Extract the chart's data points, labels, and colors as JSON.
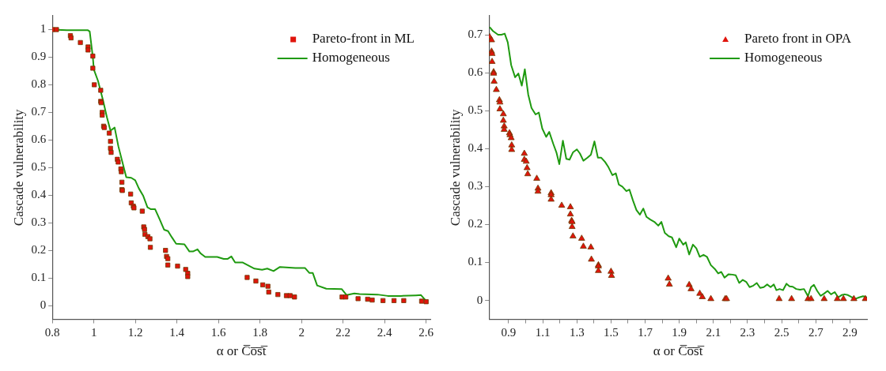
{
  "chart_data": [
    {
      "type": "scatter",
      "xlabel": "α or C̅o̅s̅t̅",
      "ylabel": "Cascade vulnerability",
      "xlim": [
        0.8,
        2.62
      ],
      "ylim": [
        -0.05,
        1.05
      ],
      "xticks": [
        0.8,
        1,
        1.2,
        1.4,
        1.6,
        1.8,
        2,
        2.2,
        2.4,
        2.6
      ],
      "yticks": [
        0,
        0.1,
        0.2,
        0.3,
        0.4,
        0.5,
        0.6,
        0.7,
        0.8,
        0.9,
        1
      ],
      "grid": false,
      "legend": "top right",
      "series": [
        {
          "name": "Pareto-front in ML",
          "type": "scatter",
          "marker": "square",
          "color": "#e0140c",
          "x": [
            0.8,
            0.82,
            0.887,
            0.89,
            0.935,
            0.972,
            0.972,
            0.995,
            0.995,
            1.002,
            1.033,
            1.033,
            1.035,
            1.04,
            1.04,
            1.047,
            1.05,
            1.074,
            1.08,
            1.08,
            1.083,
            1.113,
            1.117,
            1.13,
            1.132,
            1.135,
            1.135,
            1.137,
            1.177,
            1.18,
            1.19,
            1.193,
            1.233,
            1.24,
            1.244,
            1.246,
            1.26,
            1.27,
            1.272,
            1.345,
            1.35,
            1.356,
            1.356,
            1.403,
            1.442,
            1.452,
            1.452,
            1.738,
            1.78,
            1.813,
            1.838,
            1.842,
            1.886,
            1.927,
            1.945,
            1.966,
            2.195,
            2.213,
            2.272,
            2.318,
            2.34,
            2.392,
            2.445,
            2.492,
            2.578,
            2.6
          ],
          "values": [
            1,
            1,
            0.978,
            0.97,
            0.953,
            0.937,
            0.926,
            0.904,
            0.86,
            0.8,
            0.78,
            0.74,
            0.735,
            0.7,
            0.69,
            0.65,
            0.645,
            0.625,
            0.595,
            0.57,
            0.555,
            0.53,
            0.52,
            0.495,
            0.485,
            0.447,
            0.42,
            0.417,
            0.404,
            0.372,
            0.36,
            0.354,
            0.342,
            0.285,
            0.276,
            0.258,
            0.25,
            0.242,
            0.211,
            0.2,
            0.178,
            0.17,
            0.147,
            0.143,
            0.131,
            0.117,
            0.105,
            0.102,
            0.089,
            0.075,
            0.07,
            0.049,
            0.04,
            0.036,
            0.036,
            0.031,
            0.031,
            0.031,
            0.025,
            0.023,
            0.02,
            0.018,
            0.018,
            0.018,
            0.016,
            0.014
          ]
        },
        {
          "name": "Homogeneous",
          "type": "line",
          "marker": "none",
          "line_style": "solid",
          "color": "#1f9a10",
          "x": [
            0.8,
            0.87,
            0.97,
            0.98,
            0.995,
            1.0,
            1.02,
            1.044,
            1.063,
            1.08,
            1.1,
            1.118,
            1.156,
            1.18,
            1.199,
            1.217,
            1.238,
            1.258,
            1.275,
            1.295,
            1.316,
            1.338,
            1.357,
            1.375,
            1.396,
            1.436,
            1.46,
            1.477,
            1.499,
            1.514,
            1.536,
            1.594,
            1.625,
            1.643,
            1.662,
            1.68,
            1.717,
            1.773,
            1.81,
            1.835,
            1.865,
            1.896,
            1.97,
            2.017,
            2.038,
            2.054,
            2.075,
            2.119,
            2.193,
            2.217,
            2.254,
            2.279,
            2.365,
            2.415,
            2.477,
            2.551,
            2.575,
            2.596
          ],
          "values": [
            1,
            0.998,
            0.998,
            0.993,
            0.9,
            0.855,
            0.814,
            0.744,
            0.682,
            0.634,
            0.645,
            0.577,
            0.465,
            0.463,
            0.454,
            0.424,
            0.397,
            0.356,
            0.349,
            0.349,
            0.314,
            0.275,
            0.27,
            0.248,
            0.224,
            0.222,
            0.196,
            0.196,
            0.204,
            0.189,
            0.176,
            0.176,
            0.169,
            0.169,
            0.178,
            0.156,
            0.156,
            0.134,
            0.13,
            0.134,
            0.125,
            0.14,
            0.136,
            0.136,
            0.118,
            0.118,
            0.073,
            0.061,
            0.06,
            0.038,
            0.044,
            0.042,
            0.04,
            0.035,
            0.035,
            0.037,
            0.038,
            0.02
          ]
        }
      ]
    },
    {
      "type": "scatter",
      "xlabel": "α or C̅o̅s̅t̅",
      "ylabel": "Cascade vulnerability",
      "xlim": [
        0.785,
        3.0
      ],
      "ylim": [
        -0.05,
        0.75
      ],
      "xticks": [
        0.9,
        {
          "value": 1.0,
          "label": null
        },
        1.1,
        {
          "value": 1.2,
          "label": null
        },
        1.3,
        {
          "value": 1.4,
          "label": null
        },
        1.5,
        {
          "value": 1.6,
          "label": null
        },
        1.7,
        {
          "value": 1.8,
          "label": null
        },
        1.9,
        {
          "value": 2.0,
          "label": null
        },
        2.1,
        {
          "value": 2.2,
          "label": null
        },
        2.3,
        {
          "value": 2.4,
          "label": null
        },
        2.5,
        {
          "value": 2.6,
          "label": null
        },
        2.7,
        {
          "value": 2.8,
          "label": null
        },
        2.9
      ],
      "yticks": [
        0,
        0.1,
        0.2,
        0.3,
        0.4,
        0.5,
        0.6,
        0.7
      ],
      "grid": false,
      "legend": "top right",
      "series": [
        {
          "name": "Pareto front in OPA",
          "type": "scatter",
          "marker": "triangle",
          "color": "#e0140c",
          "x": [
            0.789,
            0.8,
            0.8,
            0.803,
            0.803,
            0.812,
            0.812,
            0.815,
            0.828,
            0.846,
            0.849,
            0.849,
            0.869,
            0.869,
            0.874,
            0.874,
            0.905,
            0.908,
            0.915,
            0.918,
            0.918,
            0.992,
            0.992,
            1.003,
            1.008,
            1.012,
            1.065,
            1.072,
            1.072,
            1.149,
            1.149,
            1.149,
            1.211,
            1.262,
            1.262,
            1.269,
            1.272,
            1.272,
            1.277,
            1.328,
            1.338,
            1.382,
            1.385,
            1.426,
            1.426,
            1.426,
            1.5,
            1.503,
            1.835,
            1.842,
            1.958,
            1.969,
            2.02,
            2.035,
            2.085,
            2.169,
            2.177,
            2.485,
            2.558,
            2.654,
            2.672,
            2.749,
            2.826,
            2.862,
            2.923,
            2.99
          ],
          "values": [
            0.694,
            0.686,
            0.656,
            0.65,
            0.629,
            0.602,
            0.598,
            0.577,
            0.555,
            0.528,
            0.522,
            0.504,
            0.491,
            0.474,
            0.459,
            0.45,
            0.441,
            0.436,
            0.428,
            0.409,
            0.397,
            0.387,
            0.371,
            0.366,
            0.349,
            0.333,
            0.321,
            0.295,
            0.287,
            0.283,
            0.278,
            0.266,
            0.25,
            0.246,
            0.227,
            0.21,
            0.207,
            0.194,
            0.169,
            0.163,
            0.142,
            0.14,
            0.108,
            0.093,
            0.09,
            0.078,
            0.076,
            0.065,
            0.058,
            0.042,
            0.041,
            0.03,
            0.018,
            0.009,
            0.004,
            0.004,
            0.004,
            0.004,
            0.004,
            0.004,
            0.004,
            0.004,
            0.004,
            0.004,
            0.004,
            0.004
          ]
        },
        {
          "name": "Homogeneous",
          "type": "line",
          "marker": "none",
          "line_style": "solid",
          "color": "#1f9a10",
          "x": [
            0.789,
            0.808,
            0.838,
            0.858,
            0.877,
            0.895,
            0.915,
            0.938,
            0.957,
            0.977,
            0.995,
            1.015,
            1.034,
            1.058,
            1.077,
            1.097,
            1.12,
            1.138,
            1.162,
            1.18,
            1.197,
            1.218,
            1.238,
            1.257,
            1.277,
            1.3,
            1.318,
            1.338,
            1.362,
            1.382,
            1.403,
            1.423,
            1.443,
            1.465,
            1.485,
            1.508,
            1.528,
            1.546,
            1.566,
            1.59,
            1.608,
            1.628,
            1.649,
            1.669,
            1.689,
            1.708,
            1.73,
            1.754,
            1.777,
            1.795,
            1.815,
            1.838,
            1.857,
            1.882,
            1.9,
            1.923,
            1.938,
            1.958,
            1.98,
            2.0,
            2.02,
            2.042,
            2.062,
            2.085,
            2.108,
            2.128,
            2.146,
            2.165,
            2.189,
            2.211,
            2.231,
            2.251,
            2.272,
            2.292,
            2.312,
            2.334,
            2.354,
            2.374,
            2.395,
            2.415,
            2.435,
            2.454,
            2.469,
            2.488,
            2.508,
            2.528,
            2.546,
            2.565,
            2.585,
            2.608,
            2.631,
            2.654,
            2.672,
            2.689,
            2.708,
            2.728,
            2.749,
            2.769,
            2.789,
            2.811,
            2.831,
            2.851,
            2.869,
            2.888,
            2.908,
            2.931,
            2.954,
            2.977,
            3.0
          ],
          "values": [
            0.72,
            0.71,
            0.7,
            0.7,
            0.703,
            0.68,
            0.62,
            0.588,
            0.598,
            0.566,
            0.609,
            0.542,
            0.507,
            0.49,
            0.495,
            0.453,
            0.431,
            0.444,
            0.412,
            0.39,
            0.359,
            0.421,
            0.373,
            0.371,
            0.39,
            0.398,
            0.387,
            0.368,
            0.376,
            0.384,
            0.419,
            0.376,
            0.376,
            0.365,
            0.351,
            0.33,
            0.335,
            0.305,
            0.3,
            0.288,
            0.292,
            0.264,
            0.238,
            0.226,
            0.242,
            0.22,
            0.213,
            0.207,
            0.197,
            0.207,
            0.178,
            0.169,
            0.166,
            0.14,
            0.163,
            0.147,
            0.153,
            0.121,
            0.147,
            0.137,
            0.115,
            0.12,
            0.115,
            0.093,
            0.083,
            0.071,
            0.075,
            0.06,
            0.069,
            0.068,
            0.066,
            0.046,
            0.054,
            0.049,
            0.035,
            0.039,
            0.046,
            0.033,
            0.035,
            0.042,
            0.035,
            0.042,
            0.027,
            0.03,
            0.027,
            0.044,
            0.037,
            0.036,
            0.03,
            0.028,
            0.03,
            0.011,
            0.035,
            0.041,
            0.025,
            0.012,
            0.018,
            0.025,
            0.016,
            0.022,
            0.008,
            0.014,
            0.016,
            0.014,
            0.009,
            0.004,
            0.008,
            0.011,
            0.008
          ]
        }
      ]
    }
  ]
}
